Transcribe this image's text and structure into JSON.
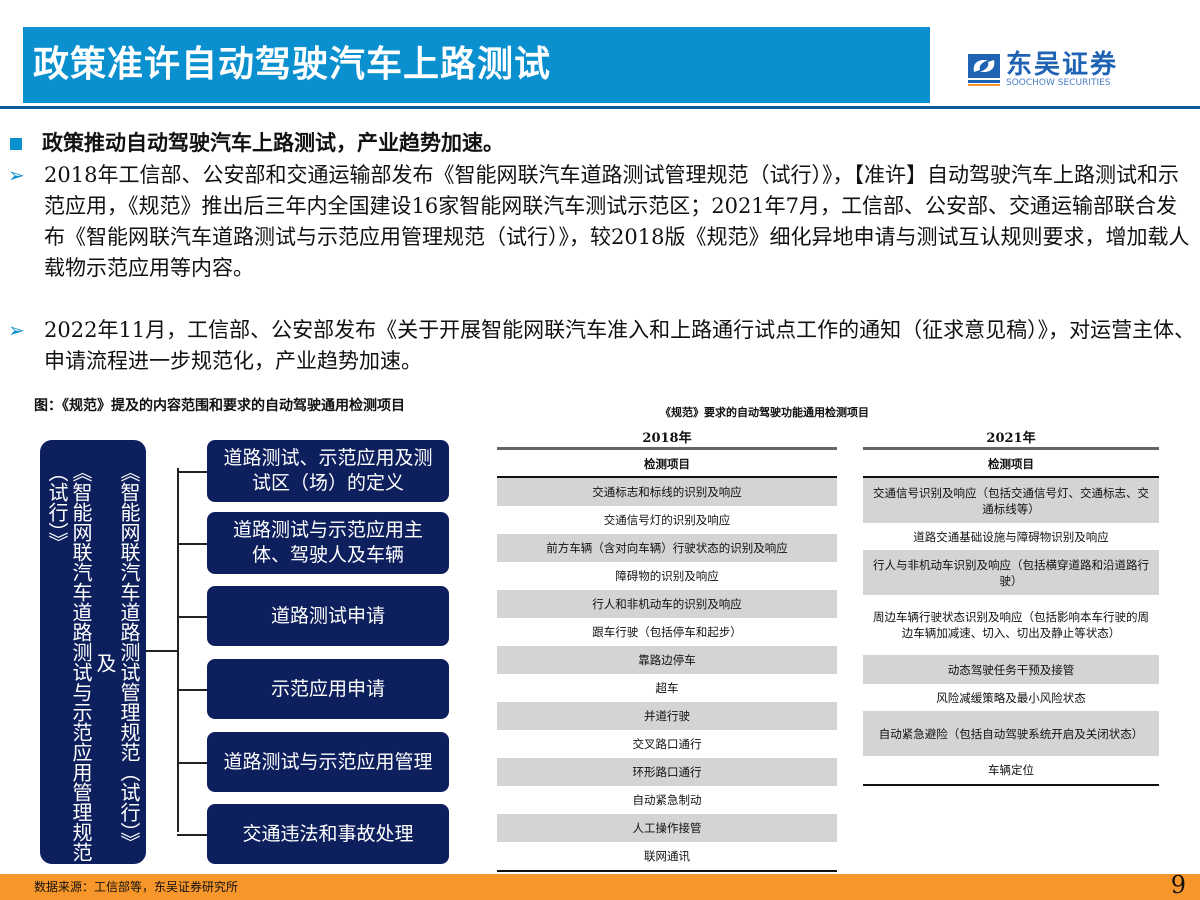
{
  "header": {
    "title": "政策准许自动驾驶汽车上路测试",
    "logo_cn": "东吴证券",
    "logo_en": "SOOCHOW SECURITIES",
    "accent": "#0a90cf"
  },
  "bullets": {
    "main": "政策推动自动驾驶汽车上路测试，产业趋势加速。",
    "p1": "2018年工信部、公安部和交通运输部发布《智能网联汽车道路测试管理规范（试行）》，【准许】自动驾驶汽车上路测试和示范应用，《规范》推出后三年内全国建设16家智能网联汽车测试示范区；2021年7月，工信部、公安部、交通运输部联合发布《智能网联汽车道路测试与示范应用管理规范（试行）》，较2018版《规范》细化异地申请与测试互认规则要求，增加载人载物示范应用等内容。",
    "p2": "2022年11月，工信部、公安部发布《关于开展智能网联汽车准入和上路通行试点工作的通知（征求意见稿）》，对运营主体、申请流程进一步规范化，产业趋势加速。"
  },
  "diagram": {
    "caption": "图：《规范》提及的内容范围和要求的自动驾驶通用检测项目",
    "root_col1": "《智能网联汽车道路测试管理规范（试行）》",
    "root_mid": "及",
    "root_col2": "《智能网联汽车道路测试与示范应用管理规范",
    "root_col3": "（试行）》",
    "nodes": [
      "道路测试、示范应用及测试区（场）的定义",
      "道路测试与示范应用主体、驾驶人及车辆",
      "道路测试申请",
      "示范应用申请",
      "道路测试与示范应用管理",
      "交通违法和事故处理"
    ]
  },
  "table": {
    "title": "《规范》要求的自动驾驶功能通用检测项目",
    "left": {
      "year": "2018年",
      "header": "检测项目",
      "rows": [
        "交通标志和标线的识别及响应",
        "交通信号灯的识别及响应",
        "前方车辆（含对向车辆）行驶状态的识别及响应",
        "障碍物的识别及响应",
        "行人和非机动车的识别及响应",
        "跟车行驶（包括停车和起步）",
        "靠路边停车",
        "超车",
        "并道行驶",
        "交叉路口通行",
        "环形路口通行",
        "自动紧急制动",
        "人工操作接管",
        "联网通讯"
      ]
    },
    "right": {
      "year": "2021年",
      "header": "检测项目",
      "rows": [
        "交通信号识别及响应（包括交通信号灯、交通标志、交通标线等）",
        "道路交通基础设施与障碍物识别及响应",
        "行人与非机动车识别及响应（包括横穿道路和沿道路行驶）",
        "周边车辆行驶状态识别及响应（包括影响本车行驶的周边车辆加减速、切入、切出及静止等状态）",
        "动态驾驶任务干预及接管",
        "风险减缓策略及最小风险状态",
        "自动紧急避险（包括自动驾驶系统开启及关闭状态）",
        "车辆定位"
      ]
    }
  },
  "footer": {
    "source": "数据来源：工信部等，东吴证券研究所",
    "page": "9",
    "color": "#f7962a"
  }
}
